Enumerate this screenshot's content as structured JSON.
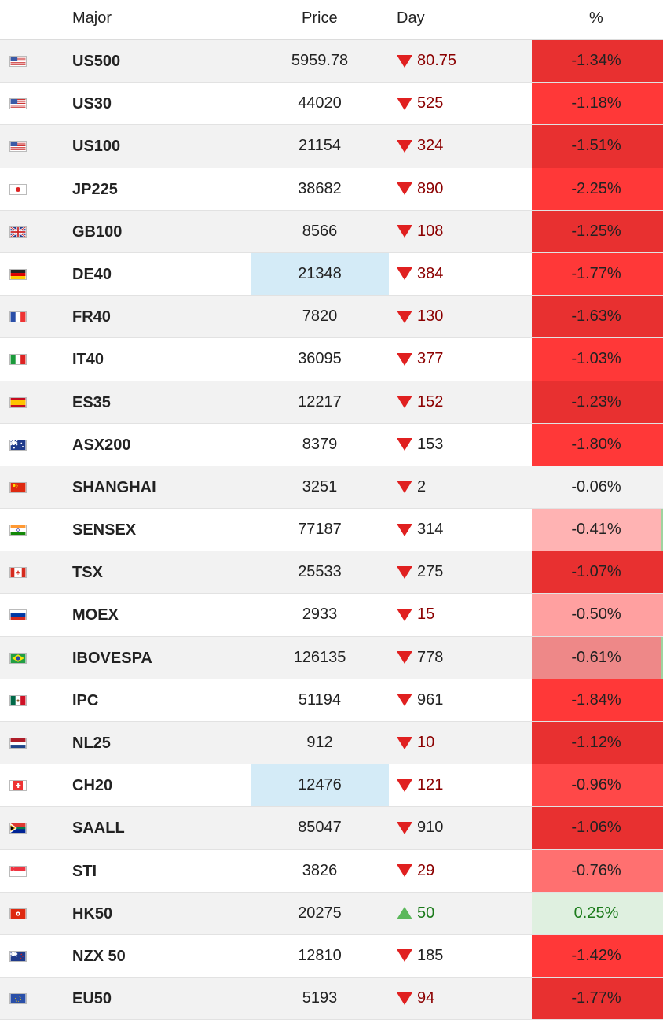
{
  "header": {
    "major": "Major",
    "price": "Price",
    "day": "Day",
    "pct": "%"
  },
  "rows": [
    {
      "flag": "us-flag-icon",
      "name": "US500",
      "price": "5959.78",
      "day": "80.75",
      "dir": "down",
      "pct": "-1.34%",
      "pct_bg": "#e83030",
      "day_color": "#8b0000",
      "hl": false
    },
    {
      "flag": "us-flag-icon",
      "name": "US30",
      "price": "44020",
      "day": "525",
      "dir": "down",
      "pct": "-1.18%",
      "pct_bg": "#ff3838",
      "day_color": "#8b0000",
      "hl": false
    },
    {
      "flag": "us-flag-icon",
      "name": "US100",
      "price": "21154",
      "day": "324",
      "dir": "down",
      "pct": "-1.51%",
      "pct_bg": "#e83030",
      "day_color": "#8b0000",
      "hl": false
    },
    {
      "flag": "jp-flag-icon",
      "name": "JP225",
      "price": "38682",
      "day": "890",
      "dir": "down",
      "pct": "-2.25%",
      "pct_bg": "#ff3838",
      "day_color": "#8b0000",
      "hl": false
    },
    {
      "flag": "gb-flag-icon",
      "name": "GB100",
      "price": "8566",
      "day": "108",
      "dir": "down",
      "pct": "-1.25%",
      "pct_bg": "#e83030",
      "day_color": "#8b0000",
      "hl": false
    },
    {
      "flag": "de-flag-icon",
      "name": "DE40",
      "price": "21348",
      "day": "384",
      "dir": "down",
      "pct": "-1.77%",
      "pct_bg": "#ff3838",
      "day_color": "#8b0000",
      "hl": true
    },
    {
      "flag": "fr-flag-icon",
      "name": "FR40",
      "price": "7820",
      "day": "130",
      "dir": "down",
      "pct": "-1.63%",
      "pct_bg": "#e83030",
      "day_color": "#8b0000",
      "hl": false
    },
    {
      "flag": "it-flag-icon",
      "name": "IT40",
      "price": "36095",
      "day": "377",
      "dir": "down",
      "pct": "-1.03%",
      "pct_bg": "#ff3838",
      "day_color": "#8b0000",
      "hl": false
    },
    {
      "flag": "es-flag-icon",
      "name": "ES35",
      "price": "12217",
      "day": "152",
      "dir": "down",
      "pct": "-1.23%",
      "pct_bg": "#e83030",
      "day_color": "#8b0000",
      "hl": false
    },
    {
      "flag": "au-flag-icon",
      "name": "ASX200",
      "price": "8379",
      "day": "153",
      "dir": "down",
      "pct": "-1.80%",
      "pct_bg": "#ff3838",
      "day_color": "#222222",
      "hl": false
    },
    {
      "flag": "cn-flag-icon",
      "name": "SHANGHAI",
      "price": "3251",
      "day": "2",
      "dir": "down",
      "pct": "-0.06%",
      "pct_bg": "transparent",
      "day_color": "#222222",
      "hl": false
    },
    {
      "flag": "in-flag-icon",
      "name": "SENSEX",
      "price": "77187",
      "day": "314",
      "dir": "down",
      "pct": "-0.41%",
      "pct_bg": "#ffb3b3",
      "day_color": "#222222",
      "hl": false,
      "edge": true
    },
    {
      "flag": "ca-flag-icon",
      "name": "TSX",
      "price": "25533",
      "day": "275",
      "dir": "down",
      "pct": "-1.07%",
      "pct_bg": "#e83030",
      "day_color": "#222222",
      "hl": false
    },
    {
      "flag": "ru-flag-icon",
      "name": "MOEX",
      "price": "2933",
      "day": "15",
      "dir": "down",
      "pct": "-0.50%",
      "pct_bg": "#ffa0a0",
      "day_color": "#8b0000",
      "hl": false
    },
    {
      "flag": "br-flag-icon",
      "name": "IBOVESPA",
      "price": "126135",
      "day": "778",
      "dir": "down",
      "pct": "-0.61%",
      "pct_bg": "#ee8888",
      "day_color": "#222222",
      "hl": false,
      "edge": true
    },
    {
      "flag": "mx-flag-icon",
      "name": "IPC",
      "price": "51194",
      "day": "961",
      "dir": "down",
      "pct": "-1.84%",
      "pct_bg": "#ff3838",
      "day_color": "#222222",
      "hl": false
    },
    {
      "flag": "nl-flag-icon",
      "name": "NL25",
      "price": "912",
      "day": "10",
      "dir": "down",
      "pct": "-1.12%",
      "pct_bg": "#e83030",
      "day_color": "#8b0000",
      "hl": false
    },
    {
      "flag": "ch-flag-icon",
      "name": "CH20",
      "price": "12476",
      "day": "121",
      "dir": "down",
      "pct": "-0.96%",
      "pct_bg": "#ff4848",
      "day_color": "#8b0000",
      "hl": true
    },
    {
      "flag": "za-flag-icon",
      "name": "SAALL",
      "price": "85047",
      "day": "910",
      "dir": "down",
      "pct": "-1.06%",
      "pct_bg": "#e83030",
      "day_color": "#222222",
      "hl": false
    },
    {
      "flag": "sg-flag-icon",
      "name": "STI",
      "price": "3826",
      "day": "29",
      "dir": "down",
      "pct": "-0.76%",
      "pct_bg": "#ff7070",
      "day_color": "#8b0000",
      "hl": false
    },
    {
      "flag": "hk-flag-icon",
      "name": "HK50",
      "price": "20275",
      "day": "50",
      "dir": "up",
      "pct": "0.25%",
      "pct_bg": "#dff0e0",
      "day_color": "#1a7a1a",
      "pct_color": "#1a7a1a",
      "hl": false
    },
    {
      "flag": "nz-flag-icon",
      "name": "NZX 50",
      "price": "12810",
      "day": "185",
      "dir": "down",
      "pct": "-1.42%",
      "pct_bg": "#ff3838",
      "day_color": "#222222",
      "hl": false
    },
    {
      "flag": "eu-flag-icon",
      "name": "EU50",
      "price": "5193",
      "day": "94",
      "dir": "down",
      "pct": "-1.77%",
      "pct_bg": "#e83030",
      "day_color": "#8b0000",
      "hl": false
    }
  ]
}
